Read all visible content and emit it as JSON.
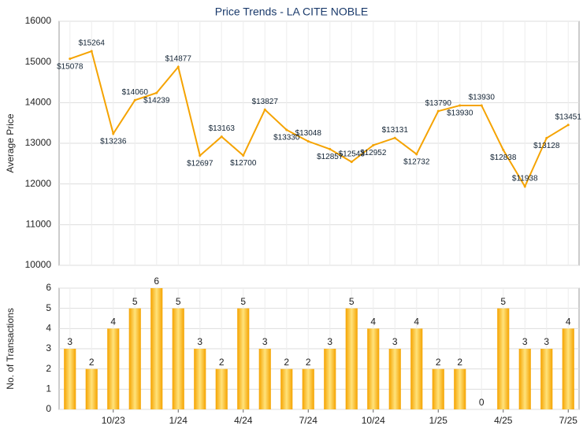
{
  "chart_data": [
    {
      "type": "line",
      "title": "Price Trends - LA CITE NOBLE",
      "y_label": "Average Price",
      "color": "#f5a300",
      "values": [
        15078,
        15264,
        13236,
        14060,
        14239,
        14877,
        12697,
        13163,
        12700,
        13827,
        13330,
        13048,
        12857,
        12543,
        12952,
        13131,
        12732,
        13790,
        13930,
        13930,
        12838,
        11938,
        13128,
        13451
      ],
      "value_labels": [
        "$15078",
        "$15264",
        "$13236",
        "$14060",
        "$14239",
        "$14877",
        "$12697",
        "$13163",
        "$12700",
        "$13827",
        "$13330",
        "$13048",
        "$12857",
        "$12543",
        "$12952",
        "$13131",
        "$12732",
        "$13790",
        "$13930",
        "$13930",
        "$12838",
        "$11938",
        "$13128",
        "$13451"
      ],
      "ylim": [
        10000,
        16000
      ],
      "yticks": [
        10000,
        11000,
        12000,
        13000,
        14000,
        15000,
        16000
      ],
      "grid": true
    },
    {
      "type": "bar",
      "y_label": "No. of Transactions",
      "color": "#f5a300",
      "categories": [
        null,
        null,
        "10/23",
        null,
        null,
        "1/24",
        null,
        null,
        "4/24",
        null,
        null,
        "7/24",
        null,
        null,
        "10/24",
        null,
        null,
        "1/25",
        null,
        null,
        "4/25",
        null,
        null,
        "7/25"
      ],
      "values": [
        3,
        2,
        4,
        5,
        6,
        5,
        3,
        2,
        5,
        3,
        2,
        2,
        3,
        5,
        4,
        3,
        4,
        2,
        2,
        0,
        5,
        3,
        3,
        4
      ],
      "ylim": [
        0,
        6
      ],
      "yticks": [
        0,
        1,
        2,
        3,
        4,
        5,
        6
      ],
      "grid": true
    }
  ]
}
